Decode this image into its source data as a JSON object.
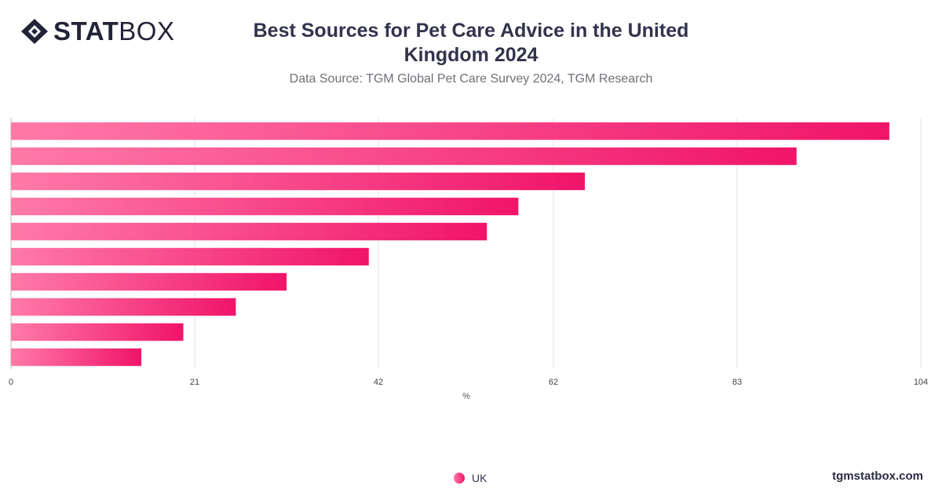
{
  "header": {
    "logo_bold": "STAT",
    "logo_light": "BOX",
    "title": "Best Sources for Pet Care Advice in the United Kingdom 2024",
    "subtitle": "Data Source: TGM Global Pet Care Survey 2024, TGM Research"
  },
  "legend": {
    "label": "UK",
    "color_start": "#ff7aa8",
    "color_end": "#f0146a"
  },
  "footer": {
    "brand": "tgmstatbox.com"
  },
  "chart_data": {
    "type": "bar",
    "orientation": "horizontal",
    "title": "Best Sources for Pet Care Advice in the United Kingdom 2024",
    "subtitle": "Data Source: TGM Global Pet Care Survey 2024, TGM Research",
    "xlabel": "%",
    "ylabel": "",
    "categories": [
      "",
      "",
      "",
      "",
      "",
      "",
      "",
      "",
      "",
      ""
    ],
    "series": [
      {
        "name": "UK",
        "values": [
          100.4,
          89.8,
          65.6,
          58.0,
          54.4,
          40.9,
          31.5,
          25.7,
          19.7,
          14.9
        ]
      }
    ],
    "xlim": [
      0,
      104
    ],
    "xticks": [
      0,
      21,
      42,
      62,
      83,
      104
    ],
    "grid": true,
    "legend_position": "bottom"
  }
}
